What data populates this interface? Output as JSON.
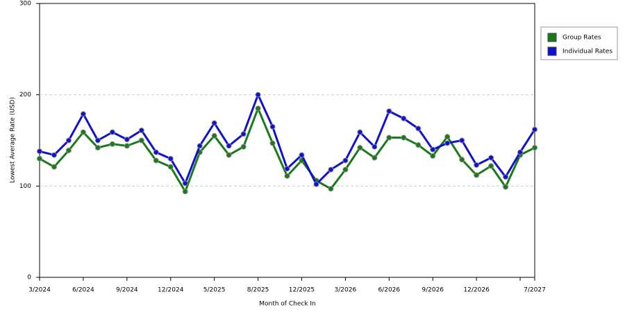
{
  "chart_data": {
    "type": "line",
    "x_label": "Month of Check In",
    "y_label": "Lowest Average Rate (USD)",
    "categories": [
      "3/2024",
      null,
      null,
      "6/2024",
      null,
      null,
      "9/2024",
      null,
      null,
      "12/2024",
      null,
      null,
      "5/2025",
      null,
      null,
      "8/2025",
      null,
      null,
      "12/2025",
      null,
      null,
      "3/2026",
      null,
      null,
      "6/2026",
      null,
      null,
      "9/2026",
      null,
      null,
      "12/2026",
      null,
      null,
      null,
      "7/2027"
    ],
    "series": [
      {
        "name": "Group Rates",
        "color": "#1a7a1a",
        "values": [
          130,
          121,
          139,
          159,
          142,
          146,
          144,
          150,
          128,
          121,
          94,
          137,
          155,
          134,
          143,
          185,
          147,
          111,
          128,
          106,
          97,
          118,
          142,
          131,
          153,
          153,
          145,
          133,
          154,
          129,
          112,
          122,
          99,
          134,
          142
        ]
      },
      {
        "name": "Individual Rates",
        "color": "#1010d0",
        "values": [
          138,
          134,
          150,
          179,
          150,
          159,
          151,
          161,
          137,
          130,
          103,
          144,
          169,
          144,
          157,
          200,
          165,
          119,
          134,
          102,
          118,
          128,
          159,
          143,
          182,
          174,
          163,
          140,
          147,
          150,
          123,
          131,
          110,
          137,
          162
        ]
      }
    ],
    "ylim": [
      0,
      300
    ],
    "yticks": [
      0,
      100,
      200,
      300
    ],
    "grid": true,
    "legend": "right"
  }
}
